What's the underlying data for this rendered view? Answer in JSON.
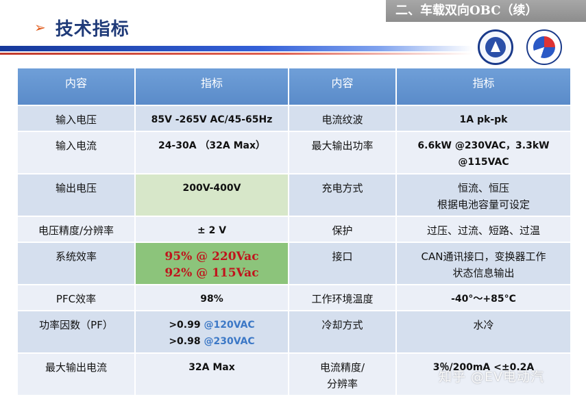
{
  "banner": "二、车载双向OBC（续）",
  "title_marker": "➢",
  "title": "技术指标",
  "headers": [
    "内容",
    "指标",
    "内容",
    "指标"
  ],
  "rows": [
    {
      "c1": "输入电压",
      "v1": [
        "85V -265V AC/45-65Hz"
      ],
      "c2": "电流纹波",
      "v2": [
        "1A pk-pk"
      ]
    },
    {
      "c1": "输入电流",
      "v1": [
        "24-30A （32A Max）"
      ],
      "c2": "最大输出功率",
      "v2": [
        "6.6kW @230VAC，3.3kW",
        "@115VAC"
      ]
    },
    {
      "c1": "输出电压",
      "v1": [
        "200V-400V"
      ],
      "c2": "充电方式",
      "v2": [
        "恒流、恒压",
        "根据电池容量可设定"
      ]
    },
    {
      "c1": "电压精度/分辨率",
      "v1": [
        "± 2 V"
      ],
      "c2": "保护",
      "v2": [
        "过压、过流、短路、过温"
      ]
    },
    {
      "c1": "系统效率",
      "v1": [
        "95% @ 220Vac",
        "92% @ 115Vac"
      ],
      "c2": "接口",
      "v2": [
        "CAN通讯接口，变换器工作",
        "状态信息输出"
      ]
    },
    {
      "c1": "PFC效率",
      "v1": [
        "98%"
      ],
      "c2": "工作环境温度",
      "v2": [
        "-40°～+85°C"
      ]
    },
    {
      "c1": "功率因数（PF）",
      "v1a": [
        ">0.99 ",
        "@120VAC"
      ],
      "v1b": [
        ">0.98 ",
        "@230VAC"
      ],
      "c2": "冷却方式",
      "v2": [
        "水冷"
      ]
    },
    {
      "c1": "最大输出电流",
      "v1": [
        "32A Max"
      ],
      "c2": [
        "电流精度/",
        "分辨率"
      ],
      "v2": [
        "3％/200mA <±0.2A"
      ]
    }
  ],
  "watermark": "知乎 @EV电动汽",
  "colors": {
    "header_bg": "#5a8bc9",
    "row_odd": "#d5dfee",
    "row_even": "#ebeff7",
    "highlight_green": "#8cc47b",
    "highlight_light": "#d7e7c9",
    "efficiency_text": "#c0141c",
    "title_text": "#1f3a78"
  }
}
